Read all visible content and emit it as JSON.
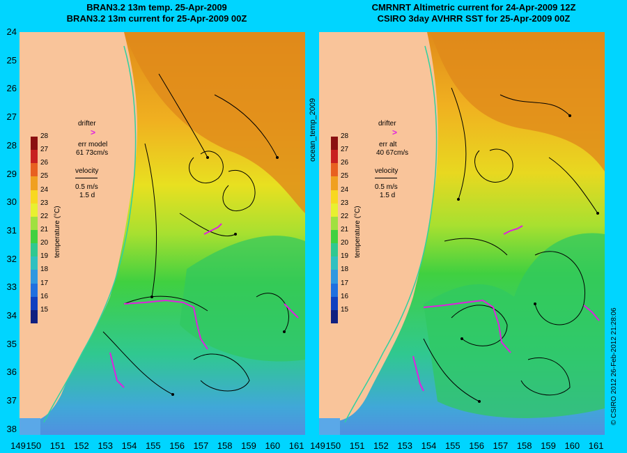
{
  "left": {
    "title1": "BRAN3.2 13m temp. 25-Apr-2009",
    "title2": "BRAN3.2 13m current for 25-Apr-2009 00Z",
    "drifter_label": "drifter",
    "err_label": "err model",
    "err_value": "61 73cm/s",
    "velocity_label": "velocity",
    "vel_value": "0.5 m/s",
    "vel_days": "1.5 d",
    "cbar_title": "temperature (°C)"
  },
  "right": {
    "title1": "CMRNRT Altimetric current for 24-Apr-2009 12Z",
    "title2": "CSIRO 3day AVHRR SST for 25-Apr-2009 00Z",
    "drifter_label": "drifter",
    "err_label": "err alt",
    "err_value": "40 67cm/s",
    "velocity_label": "velocity",
    "vel_value": "0.5 m/s",
    "vel_days": "1.5 d",
    "cbar_title": "temperature (°C)"
  },
  "middle_label": "ocean_temp_2009",
  "credit": "© CSIRO 2012   26-Feb-2012 21:28:06",
  "y_ticks": [
    "24",
    "25",
    "26",
    "27",
    "28",
    "29",
    "30",
    "31",
    "32",
    "33",
    "34",
    "35",
    "36",
    "37",
    "38"
  ],
  "x_ticks": [
    "149",
    "150",
    "151",
    "152",
    "153",
    "154",
    "155",
    "156",
    "157",
    "158",
    "159",
    "160",
    "161"
  ],
  "cbar_ticks": [
    "28",
    "27",
    "26",
    "25",
    "24",
    "23",
    "22",
    "21",
    "20",
    "19",
    "18",
    "17",
    "16",
    "15"
  ],
  "colors": {
    "background": "#00d5ff",
    "land": "#f9c49a",
    "drifter": "#e020e0"
  }
}
